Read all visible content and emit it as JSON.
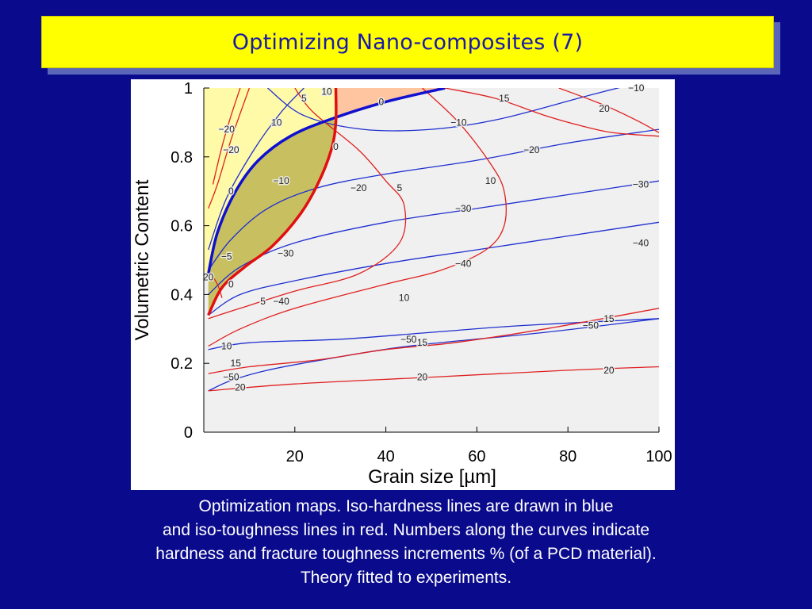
{
  "slide": {
    "title": "Optimizing Nano-composites (7)",
    "caption": [
      "Optimization maps. Iso-hardness lines are drawn in blue",
      "and iso-toughness lines in red. Numbers along the curves indicate",
      "hardness and fracture toughness increments % (of a PCD material).",
      "Theory fitted to experiments."
    ]
  },
  "colors": {
    "hardness_lines": "#1f2fd0",
    "toughness_lines": "#e02020",
    "boundary_hardness": "#1010d0",
    "boundary_toughness": "#e01010",
    "region_yellow": "#fffaa8",
    "region_olive": "#c8c060",
    "region_peach": "#ffc4a0",
    "plot_background": "#f0f0f0"
  },
  "chart_data": {
    "type": "contour",
    "xlabel": "Grain size [µm]",
    "ylabel": "Volumetric Content",
    "xlim": [
      0,
      100
    ],
    "ylim": [
      0,
      1
    ],
    "xticks": [
      20,
      40,
      60,
      80,
      100
    ],
    "yticks": [
      0,
      0.2,
      0.4,
      0.6,
      0.8,
      1
    ],
    "xtick_labels": [
      "20",
      "40",
      "60",
      "80",
      "100"
    ],
    "ytick_labels": [
      "0",
      "0.2",
      "0.4",
      "0.6",
      "0.8",
      "1"
    ],
    "hardness_contours": [
      {
        "level": "−10",
        "points": [
          [
            14,
            1.0
          ],
          [
            22,
            0.92
          ],
          [
            35,
            0.88
          ],
          [
            50,
            0.88
          ],
          [
            65,
            0.91
          ],
          [
            85,
            0.98
          ],
          [
            100,
            1.03
          ]
        ],
        "label_at": [
          56,
          0.9
        ]
      },
      {
        "level": "−10",
        "points": [
          [
            1,
            0.53
          ],
          [
            5,
            0.68
          ],
          [
            11,
            0.82
          ],
          [
            17,
            0.93
          ],
          [
            22,
            1.0
          ]
        ],
        "label_at": [
          14,
          0.9
        ]
      },
      {
        "level": "−20",
        "points": [
          [
            1,
            0.47
          ],
          [
            6,
            0.56
          ],
          [
            14,
            0.65
          ],
          [
            25,
            0.71
          ],
          [
            40,
            0.75
          ],
          [
            60,
            0.79
          ],
          [
            80,
            0.84
          ],
          [
            100,
            0.88
          ]
        ],
        "label_at": [
          72,
          0.82
        ]
      },
      {
        "level": "−30",
        "points": [
          [
            1,
            0.4
          ],
          [
            8,
            0.48
          ],
          [
            20,
            0.55
          ],
          [
            40,
            0.61
          ],
          [
            60,
            0.65
          ],
          [
            80,
            0.69
          ],
          [
            100,
            0.73
          ]
        ],
        "label_at": [
          94,
          0.72
        ]
      },
      {
        "level": "−40",
        "points": [
          [
            1,
            0.34
          ],
          [
            8,
            0.4
          ],
          [
            20,
            0.44
          ],
          [
            40,
            0.49
          ],
          [
            60,
            0.53
          ],
          [
            80,
            0.57
          ],
          [
            100,
            0.61
          ]
        ],
        "label_at": [
          96,
          0.56
        ]
      },
      {
        "level": "−50",
        "points": [
          [
            1,
            0.24
          ],
          [
            10,
            0.26
          ],
          [
            30,
            0.27
          ],
          [
            50,
            0.29
          ],
          [
            70,
            0.31
          ],
          [
            100,
            0.33
          ]
        ],
        "label_at": [
          86,
          0.31
        ]
      },
      {
        "level": "−50",
        "points": [
          [
            1,
            0.12
          ],
          [
            6,
            0.15
          ],
          [
            14,
            0.18
          ],
          [
            26,
            0.21
          ],
          [
            45,
            0.25
          ],
          [
            75,
            0.29
          ],
          [
            100,
            0.33
          ]
        ],
        "label_at": [
          6,
          0.15
        ]
      }
    ],
    "toughness_contours": [
      {
        "level": "5",
        "points": [
          [
            20,
            1.0
          ],
          [
            24,
            0.93
          ],
          [
            34,
            0.82
          ],
          [
            40,
            0.73
          ],
          [
            44,
            0.66
          ],
          [
            43,
            0.55
          ],
          [
            34,
            0.46
          ],
          [
            20,
            0.41
          ],
          [
            8,
            0.36
          ],
          [
            1,
            0.33
          ]
        ],
        "label_at": [
          42,
          0.71
        ]
      },
      {
        "level": "10",
        "points": [
          [
            48,
            1.0
          ],
          [
            56,
            0.9
          ],
          [
            63,
            0.78
          ],
          [
            66,
            0.7
          ],
          [
            66,
            0.6
          ],
          [
            62,
            0.53
          ],
          [
            52,
            0.47
          ],
          [
            40,
            0.43
          ],
          [
            20,
            0.36
          ],
          [
            8,
            0.3
          ],
          [
            1,
            0.25
          ]
        ],
        "label_at": [
          63,
          0.72
        ]
      },
      {
        "level": "10",
        "points": [
          [
            10,
            1.0
          ],
          [
            6,
            0.85
          ],
          [
            3,
            0.72
          ],
          [
            1,
            0.65
          ]
        ],
        "label_at": [
          4,
          0.73
        ]
      },
      {
        "level": "15",
        "points": [
          [
            53,
            1.0
          ],
          [
            64,
            0.97
          ],
          [
            75,
            0.92
          ],
          [
            83,
            0.89
          ],
          [
            90,
            0.87
          ],
          [
            100,
            0.86
          ]
        ],
        "label_at": [
          65,
          0.96
        ]
      },
      {
        "level": "15",
        "points": [
          [
            1,
            0.17
          ],
          [
            10,
            0.19
          ],
          [
            25,
            0.21
          ],
          [
            40,
            0.24
          ],
          [
            55,
            0.26
          ],
          [
            75,
            0.3
          ],
          [
            100,
            0.36
          ]
        ],
        "label_at": [
          88,
          0.33
        ]
      },
      {
        "level": "20",
        "points": [
          [
            78,
            1.0
          ],
          [
            88,
            0.95
          ],
          [
            96,
            0.9
          ],
          [
            100,
            0.87
          ]
        ],
        "label_at": [
          88,
          0.94
        ]
      },
      {
        "level": "20",
        "points": [
          [
            1,
            0.12
          ],
          [
            20,
            0.14
          ],
          [
            50,
            0.16
          ],
          [
            80,
            0.18
          ],
          [
            100,
            0.19
          ]
        ],
        "label_at": [
          91,
          0.18
        ]
      },
      {
        "level": "20",
        "points": [
          [
            8,
            1.0
          ],
          [
            6,
            0.92
          ],
          [
            4,
            0.83
          ],
          [
            2,
            0.72
          ]
        ],
        "label_at": [
          6,
          0.93
        ]
      },
      {
        "level": "20",
        "points": [
          [
            1,
            0.47
          ],
          [
            3,
            0.43
          ],
          [
            4,
            0.39
          ]
        ],
        "label_at": [
          2,
          0.44
        ]
      }
    ],
    "boundary_hardness": {
      "level": "0",
      "points": [
        [
          1,
          0.46
        ],
        [
          3,
          0.58
        ],
        [
          7,
          0.7
        ],
        [
          12,
          0.79
        ],
        [
          19,
          0.86
        ],
        [
          28,
          0.91
        ],
        [
          40,
          0.96
        ],
        [
          53,
          1.0
        ]
      ],
      "label_at": [
        40,
        0.95
      ]
    },
    "boundary_toughness": {
      "level": "0",
      "points": [
        [
          29,
          1.0
        ],
        [
          29,
          0.9
        ],
        [
          28,
          0.82
        ],
        [
          25,
          0.72
        ],
        [
          21,
          0.63
        ],
        [
          15,
          0.54
        ],
        [
          9,
          0.48
        ],
        [
          4,
          0.42
        ],
        [
          1,
          0.34
        ]
      ],
      "label_at": [
        29,
        0.83
      ]
    },
    "extra_labels": [
      {
        "text": "5",
        "at": [
          22,
          0.97
        ]
      },
      {
        "text": "10",
        "at": [
          27,
          0.99
        ]
      },
      {
        "text": "10",
        "at": [
          16,
          0.9
        ]
      },
      {
        "text": "0",
        "at": [
          6,
          0.7
        ]
      },
      {
        "text": "−10",
        "at": [
          17,
          0.73
        ]
      },
      {
        "text": "−20",
        "at": [
          34,
          0.71
        ]
      },
      {
        "text": "5",
        "at": [
          43,
          0.71
        ]
      },
      {
        "text": "−30",
        "at": [
          18,
          0.52
        ]
      },
      {
        "text": "−5",
        "at": [
          5,
          0.51
        ]
      },
      {
        "text": "0",
        "at": [
          6,
          0.43
        ]
      },
      {
        "text": "5",
        "at": [
          13,
          0.38
        ]
      },
      {
        "text": "−40",
        "at": [
          17,
          0.38
        ]
      },
      {
        "text": "−20",
        "at": [
          5,
          0.88
        ]
      },
      {
        "text": "0",
        "at": [
          39,
          0.96
        ]
      },
      {
        "text": "0",
        "at": [
          29,
          0.83
        ]
      },
      {
        "text": "−10",
        "at": [
          56,
          0.9
        ]
      },
      {
        "text": "−20",
        "at": [
          72,
          0.82
        ]
      },
      {
        "text": "−30",
        "at": [
          57,
          0.65
        ]
      },
      {
        "text": "−30",
        "at": [
          96,
          0.72
        ]
      },
      {
        "text": "−40",
        "at": [
          57,
          0.49
        ]
      },
      {
        "text": "−40",
        "at": [
          96,
          0.55
        ]
      },
      {
        "text": "10",
        "at": [
          44,
          0.39
        ]
      },
      {
        "text": "10",
        "at": [
          5,
          0.25
        ]
      },
      {
        "text": "15",
        "at": [
          7,
          0.2
        ]
      },
      {
        "text": "−50",
        "at": [
          6,
          0.16
        ]
      },
      {
        "text": "20",
        "at": [
          8,
          0.13
        ]
      },
      {
        "text": "−50",
        "at": [
          45,
          0.27
        ]
      },
      {
        "text": "15",
        "at": [
          48,
          0.26
        ]
      },
      {
        "text": "20",
        "at": [
          48,
          0.16
        ]
      },
      {
        "text": "−50",
        "at": [
          85,
          0.31
        ]
      },
      {
        "text": "15",
        "at": [
          89,
          0.33
        ]
      },
      {
        "text": "20",
        "at": [
          89,
          0.18
        ]
      },
      {
        "text": "15",
        "at": [
          66,
          0.97
        ]
      },
      {
        "text": "20",
        "at": [
          88,
          0.94
        ]
      },
      {
        "text": "−10",
        "at": [
          95,
          1.0
        ]
      },
      {
        "text": "10",
        "at": [
          63,
          0.73
        ]
      },
      {
        "text": "−20",
        "at": [
          6,
          0.82
        ]
      },
      {
        "text": "20",
        "at": [
          1,
          0.45
        ]
      }
    ]
  }
}
